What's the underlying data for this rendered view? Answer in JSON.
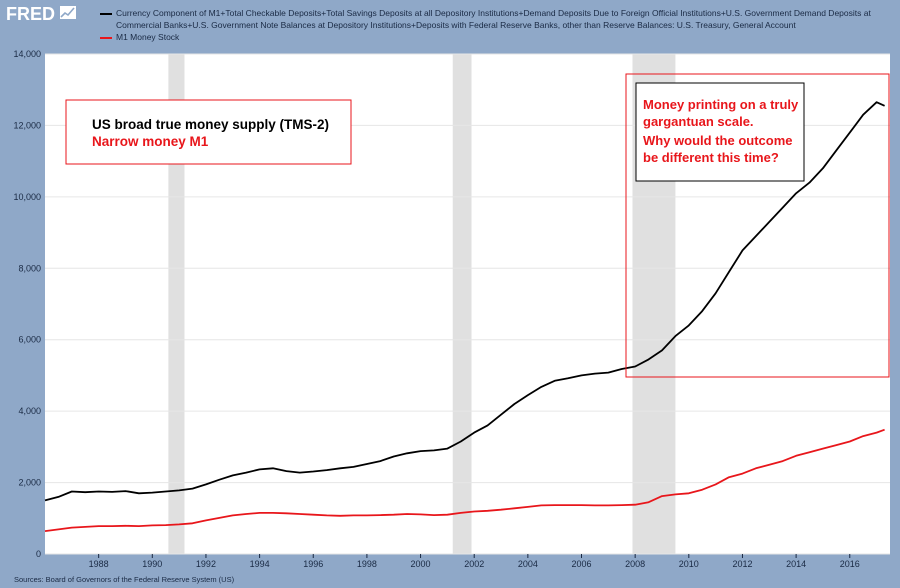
{
  "header": {
    "logo_text": "FRED",
    "logo_icon": "chart-line-icon"
  },
  "source": "Sources: Board of Governors of the Federal Reserve System (US)",
  "colors": {
    "background": "#8fa8c8",
    "plot": "#ffffff",
    "recession": "#e0e0e0",
    "series1": "#000000",
    "series2": "#e8161b",
    "annotation": "#e8161b"
  },
  "chart_data": {
    "type": "line",
    "title": "",
    "xlabel": "",
    "ylabel": "",
    "xlim": [
      1986.0,
      2017.5
    ],
    "ylim": [
      0,
      14000
    ],
    "yticks": [
      0,
      2000,
      4000,
      6000,
      8000,
      10000,
      12000,
      14000
    ],
    "ytick_labels": [
      "0",
      "2,000",
      "4,000",
      "6,000",
      "8,000",
      "10,000",
      "12,000",
      "14,000"
    ],
    "xticks": [
      1988,
      1990,
      1992,
      1994,
      1996,
      1998,
      2000,
      2002,
      2004,
      2006,
      2008,
      2010,
      2012,
      2014,
      2016
    ],
    "xtick_labels": [
      "1988",
      "1990",
      "1992",
      "1994",
      "1996",
      "1998",
      "2000",
      "2002",
      "2004",
      "2006",
      "2008",
      "2010",
      "2012",
      "2014",
      "2016"
    ],
    "grid": true,
    "legend_position": "top",
    "recessions": [
      [
        1990.6,
        1991.2
      ],
      [
        2001.2,
        2001.9
      ],
      [
        2007.9,
        2009.5
      ]
    ],
    "series": [
      {
        "name": "Currency Component of M1+Total Checkable Deposits+Total Savings Deposits at all Depository Institutions+Demand Deposits Due to Foreign Official Institutions+U.S. Government Demand Deposits at Commercial Banks+U.S. Government Note Balances at Depository Institutions+Deposits with Federal Reserve Banks, other than Reserve Balances: U.S. Treasury, General Account",
        "color": "#000000",
        "x": [
          1986.0,
          1986.5,
          1987.0,
          1987.5,
          1988.0,
          1988.5,
          1989.0,
          1989.5,
          1990.0,
          1990.5,
          1991.0,
          1991.5,
          1992.0,
          1992.5,
          1993.0,
          1993.5,
          1994.0,
          1994.5,
          1995.0,
          1995.5,
          1996.0,
          1996.5,
          1997.0,
          1997.5,
          1998.0,
          1998.5,
          1999.0,
          1999.5,
          2000.0,
          2000.5,
          2001.0,
          2001.5,
          2002.0,
          2002.5,
          2003.0,
          2003.5,
          2004.0,
          2004.5,
          2005.0,
          2005.5,
          2006.0,
          2006.5,
          2007.0,
          2007.5,
          2008.0,
          2008.5,
          2009.0,
          2009.5,
          2010.0,
          2010.5,
          2011.0,
          2011.5,
          2012.0,
          2012.5,
          2013.0,
          2013.5,
          2014.0,
          2014.5,
          2015.0,
          2015.5,
          2016.0,
          2016.5,
          2017.0,
          2017.3
        ],
        "values": [
          1500,
          1600,
          1750,
          1730,
          1750,
          1740,
          1760,
          1700,
          1720,
          1750,
          1780,
          1830,
          1950,
          2080,
          2200,
          2280,
          2370,
          2400,
          2320,
          2280,
          2310,
          2350,
          2400,
          2440,
          2520,
          2600,
          2730,
          2820,
          2880,
          2900,
          2950,
          3150,
          3400,
          3600,
          3900,
          4200,
          4450,
          4680,
          4850,
          4920,
          5000,
          5050,
          5080,
          5180,
          5250,
          5450,
          5700,
          6100,
          6400,
          6800,
          7300,
          7900,
          8500,
          8900,
          9300,
          9700,
          10100,
          10400,
          10800,
          11300,
          11800,
          12300,
          12650,
          12550
        ]
      },
      {
        "name": "M1 Money Stock",
        "color": "#e8161b",
        "x": [
          1986.0,
          1986.5,
          1987.0,
          1987.5,
          1988.0,
          1988.5,
          1989.0,
          1989.5,
          1990.0,
          1990.5,
          1991.0,
          1991.5,
          1992.0,
          1992.5,
          1993.0,
          1993.5,
          1994.0,
          1994.5,
          1995.0,
          1995.5,
          1996.0,
          1996.5,
          1997.0,
          1997.5,
          1998.0,
          1998.5,
          1999.0,
          1999.5,
          2000.0,
          2000.5,
          2001.0,
          2001.5,
          2002.0,
          2002.5,
          2003.0,
          2003.5,
          2004.0,
          2004.5,
          2005.0,
          2005.5,
          2006.0,
          2006.5,
          2007.0,
          2007.5,
          2008.0,
          2008.5,
          2009.0,
          2009.5,
          2010.0,
          2010.5,
          2011.0,
          2011.5,
          2012.0,
          2012.5,
          2013.0,
          2013.5,
          2014.0,
          2014.5,
          2015.0,
          2015.5,
          2016.0,
          2016.5,
          2017.0,
          2017.3
        ],
        "values": [
          640,
          690,
          740,
          760,
          780,
          780,
          790,
          780,
          800,
          810,
          830,
          860,
          940,
          1010,
          1080,
          1120,
          1150,
          1150,
          1140,
          1120,
          1100,
          1080,
          1070,
          1080,
          1080,
          1090,
          1100,
          1120,
          1110,
          1090,
          1100,
          1150,
          1190,
          1210,
          1240,
          1280,
          1320,
          1360,
          1370,
          1370,
          1370,
          1360,
          1360,
          1370,
          1380,
          1450,
          1620,
          1670,
          1700,
          1800,
          1950,
          2150,
          2250,
          2400,
          2500,
          2600,
          2750,
          2850,
          2950,
          3050,
          3150,
          3300,
          3400,
          3480
        ]
      }
    ]
  },
  "annotations": {
    "left_box": {
      "line1": "US broad true money supply (TMS-2)",
      "line2": "Narrow money M1"
    },
    "right_box": {
      "line1": "Money printing on a truly",
      "line2": "gargantuan scale.",
      "line3": "Why would the outcome",
      "line4": "be different this time?"
    }
  }
}
